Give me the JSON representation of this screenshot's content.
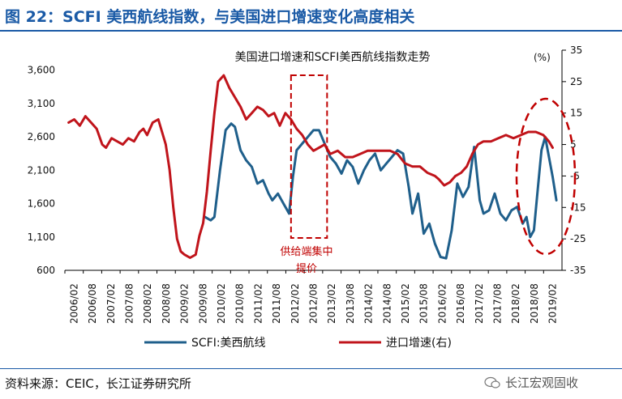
{
  "figure_title": "图 22：SCFI 美西航线指数，与美国进口增速变化高度相关",
  "source_note": "资料来源：CEIC，长江证券研究所",
  "watermark": "长江宏观固收",
  "colors": {
    "scfi": "#1f5f8b",
    "import": "#c0141b",
    "annotation": "#c00000",
    "title_blue": "#1a5aa6"
  },
  "chart_data": {
    "type": "line",
    "title": "美国进口增速和SCFI美西航线指数走势",
    "y_left": {
      "ticks": [
        600,
        1100,
        1600,
        2100,
        2600,
        3100,
        3600
      ],
      "tick_labels": [
        "600",
        "1,100",
        "1,600",
        "2,100",
        "2,600",
        "3,100",
        "3,600"
      ],
      "ylim": [
        600,
        3900
      ]
    },
    "y_right": {
      "ticks": [
        -35,
        -25,
        -15,
        -5,
        5,
        15,
        25,
        35
      ],
      "ylim": [
        -35,
        35
      ],
      "unit_label": "(%)"
    },
    "x_labels": [
      "2006/02",
      "2006/08",
      "2007/02",
      "2007/08",
      "2008/02",
      "2008/08",
      "2009/02",
      "2009/08",
      "2010/02",
      "2010/08",
      "2011/02",
      "2011/08",
      "2012/02",
      "2012/08",
      "2013/02",
      "2013/08",
      "2014/02",
      "2014/08",
      "2015/02",
      "2015/08",
      "2016/02",
      "2016/08",
      "2017/02",
      "2017/08",
      "2018/02",
      "2018/08",
      "2019/02"
    ],
    "legend_placement": "bottom",
    "series": [
      {
        "name": "SCFI:美西航线",
        "axis": "left",
        "x": [
          2009.75,
          2009.9,
          2010.0,
          2010.15,
          2010.3,
          2010.45,
          2010.55,
          2010.7,
          2010.85,
          2011.0,
          2011.15,
          2011.3,
          2011.45,
          2011.55,
          2011.7,
          2011.85,
          2012.0,
          2012.1,
          2012.2,
          2012.35,
          2012.5,
          2012.65,
          2012.8,
          2012.95,
          2013.1,
          2013.25,
          2013.4,
          2013.55,
          2013.7,
          2013.85,
          2014.0,
          2014.15,
          2014.3,
          2014.45,
          2014.6,
          2014.75,
          2014.9,
          2015.05,
          2015.2,
          2015.3,
          2015.45,
          2015.6,
          2015.75,
          2015.9,
          2016.05,
          2016.2,
          2016.35,
          2016.5,
          2016.65,
          2016.8,
          2016.95,
          2017.1,
          2017.2,
          2017.35,
          2017.5,
          2017.65,
          2017.8,
          2017.95,
          2018.1,
          2018.25,
          2018.35,
          2018.45,
          2018.55,
          2018.65,
          2018.75,
          2018.85,
          2018.95,
          2019.05,
          2019.15
        ],
        "values": [
          1400,
          1350,
          1400,
          2100,
          2700,
          2800,
          2750,
          2400,
          2250,
          2150,
          1900,
          1950,
          1750,
          1650,
          1750,
          1600,
          1450,
          2000,
          2400,
          2500,
          2600,
          2700,
          2700,
          2500,
          2300,
          2200,
          2050,
          2250,
          2150,
          1900,
          2100,
          2250,
          2350,
          2100,
          2200,
          2300,
          2400,
          2350,
          1850,
          1450,
          1750,
          1150,
          1300,
          1000,
          800,
          780,
          1200,
          1900,
          1700,
          1850,
          2450,
          1650,
          1450,
          1500,
          1750,
          1450,
          1350,
          1500,
          1550,
          1300,
          1400,
          1100,
          1200,
          1800,
          2400,
          2600,
          2300,
          2000,
          1650
        ]
      },
      {
        "name": "进口增速(右)",
        "axis": "right",
        "x": [
          2006.1,
          2006.25,
          2006.4,
          2006.55,
          2006.7,
          2006.85,
          2007.0,
          2007.1,
          2007.25,
          2007.4,
          2007.55,
          2007.7,
          2007.85,
          2008.0,
          2008.1,
          2008.2,
          2008.35,
          2008.5,
          2008.6,
          2008.7,
          2008.8,
          2008.9,
          2009.0,
          2009.1,
          2009.2,
          2009.35,
          2009.5,
          2009.6,
          2009.7,
          2009.8,
          2009.9,
          2010.0,
          2010.1,
          2010.25,
          2010.4,
          2010.55,
          2010.7,
          2010.85,
          2011.0,
          2011.15,
          2011.3,
          2011.45,
          2011.6,
          2011.75,
          2011.9,
          2012.05,
          2012.2,
          2012.35,
          2012.5,
          2012.65,
          2012.8,
          2012.95,
          2013.1,
          2013.3,
          2013.5,
          2013.7,
          2013.9,
          2014.1,
          2014.3,
          2014.5,
          2014.7,
          2014.9,
          2015.1,
          2015.3,
          2015.5,
          2015.7,
          2015.9,
          2016.0,
          2016.15,
          2016.3,
          2016.45,
          2016.6,
          2016.75,
          2016.9,
          2017.05,
          2017.2,
          2017.4,
          2017.6,
          2017.8,
          2018.0,
          2018.2,
          2018.4,
          2018.6,
          2018.8,
          2018.95,
          2019.05
        ],
        "values": [
          12,
          13,
          11,
          14,
          12,
          10,
          5,
          4,
          7,
          6,
          5,
          7,
          6,
          9,
          10,
          8,
          12,
          13,
          9,
          5,
          -3,
          -15,
          -25,
          -29,
          -30,
          -31,
          -30,
          -24,
          -20,
          -10,
          3,
          15,
          25,
          27,
          23,
          20,
          17,
          13,
          15,
          17,
          16,
          14,
          15,
          11,
          15,
          13,
          10,
          8,
          5,
          3,
          4,
          5,
          2,
          3,
          1,
          1,
          2,
          3,
          3,
          3,
          3,
          2,
          -1,
          -2,
          -2,
          -4,
          -5,
          -6,
          -8,
          -7,
          -5,
          -4,
          -2,
          2,
          5,
          6,
          6,
          7,
          8,
          7,
          8,
          9,
          9,
          8,
          6,
          4
        ]
      }
    ],
    "annotations": [
      {
        "text_line1": "供给端集中",
        "text_line2": "提价"
      }
    ]
  }
}
